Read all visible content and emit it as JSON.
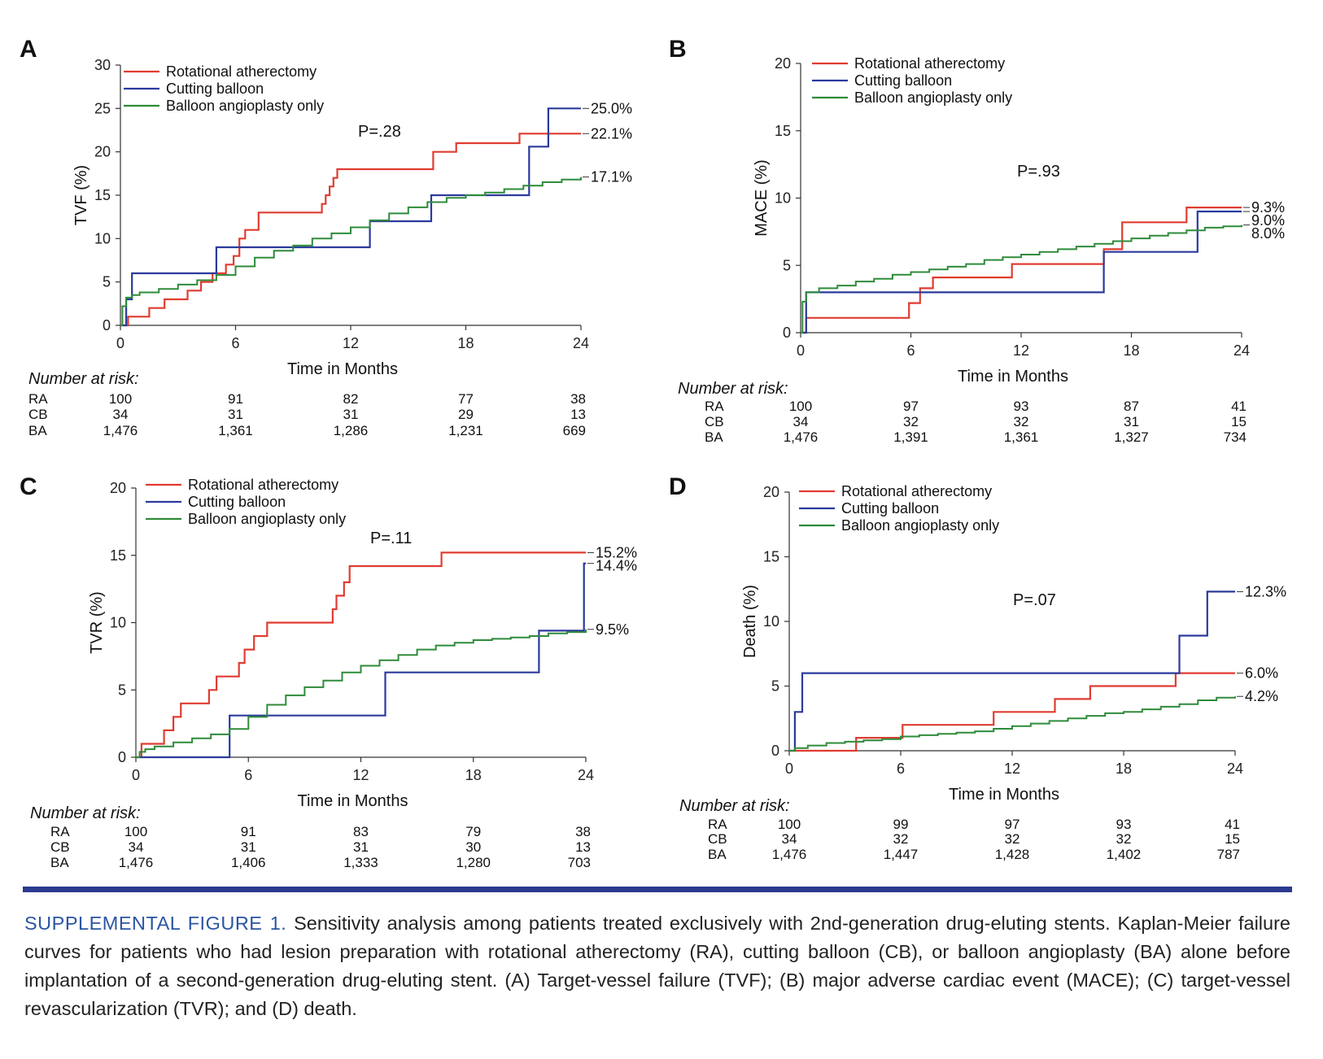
{
  "legend_labels": [
    "Rotational atherectomy",
    "Cutting balloon",
    "Balloon angioplasty only"
  ],
  "colors": {
    "RA": "#e03c31",
    "CB": "#2b3a9c",
    "BA": "#2e8b3a",
    "divider": "#2b3a8f",
    "caption_label": "#2b55a3"
  },
  "risk": {
    "title": "Number at risk:",
    "group_labels": [
      "RA",
      "CB",
      "BA"
    ]
  },
  "chart_data": [
    {
      "panel": "A",
      "type": "line",
      "title": "",
      "xlabel": "Time in Months",
      "ylabel": "TVF (%)",
      "xlim": [
        0,
        24
      ],
      "ylim": [
        0,
        30
      ],
      "xticks": [
        0,
        6,
        12,
        18,
        24
      ],
      "yticks": [
        0,
        5,
        10,
        15,
        20,
        25,
        30
      ],
      "legend": "top-left",
      "pvalue": "P=.28",
      "series": [
        {
          "name": "Rotational atherectomy",
          "key": "RA",
          "end_label": "22.1%",
          "x": [
            0,
            0.4,
            1.5,
            2.3,
            3.5,
            4.2,
            4.8,
            5.5,
            5.9,
            6.2,
            6.5,
            7.2,
            10.5,
            10.7,
            10.9,
            11.1,
            11.3,
            16.3,
            17.5,
            20.8,
            24
          ],
          "y": [
            0,
            1,
            2,
            3,
            4,
            5,
            6,
            7,
            8,
            10,
            11,
            13,
            14,
            15,
            16,
            17,
            18,
            20,
            21,
            22.1,
            22.1
          ]
        },
        {
          "name": "Cutting balloon",
          "key": "CB",
          "end_label": "25.0%",
          "x": [
            0,
            0.3,
            0.6,
            5,
            13,
            16.2,
            21.3,
            22.3,
            24
          ],
          "y": [
            0,
            3,
            6,
            9,
            12,
            15,
            20.6,
            25,
            25
          ]
        },
        {
          "name": "Balloon angioplasty only",
          "key": "BA",
          "end_label": "17.1%",
          "x": [
            0,
            0.1,
            0.3,
            0.6,
            1,
            2,
            3,
            4,
            5,
            6,
            7,
            8,
            9,
            10,
            11,
            12,
            13,
            14,
            15,
            16,
            17,
            18,
            19,
            20,
            21,
            22,
            23,
            24
          ],
          "y": [
            0,
            2.2,
            3.2,
            3.5,
            3.8,
            4.2,
            4.7,
            5.2,
            5.8,
            6.8,
            7.8,
            8.6,
            9.2,
            10,
            10.6,
            11.3,
            12.1,
            12.9,
            13.6,
            14.2,
            14.7,
            15,
            15.3,
            15.7,
            16.1,
            16.5,
            16.8,
            17.1
          ]
        }
      ],
      "risk_times": [
        0,
        6,
        12,
        18,
        24
      ],
      "risk_rows": [
        [
          "100",
          "91",
          "82",
          "77",
          "38"
        ],
        [
          "34",
          "31",
          "31",
          "29",
          "13"
        ],
        [
          "1,476",
          "1,361",
          "1,286",
          "1,231",
          "669"
        ]
      ]
    },
    {
      "panel": "B",
      "type": "line",
      "title": "",
      "xlabel": "Time in Months",
      "ylabel": "MACE (%)",
      "xlim": [
        0,
        24
      ],
      "ylim": [
        0,
        20
      ],
      "xticks": [
        0,
        6,
        12,
        18,
        24
      ],
      "yticks": [
        0,
        5,
        10,
        15,
        20
      ],
      "legend": "top-left",
      "pvalue": "P=.93",
      "series": [
        {
          "name": "Rotational atherectomy",
          "key": "RA",
          "end_label": "9.3%",
          "x": [
            0,
            0.3,
            5.9,
            6.5,
            7.2,
            11.5,
            16.5,
            17.5,
            21,
            24
          ],
          "y": [
            0,
            1.1,
            2.2,
            3.3,
            4.1,
            5.1,
            6.2,
            8.2,
            9.3,
            9.3
          ]
        },
        {
          "name": "Cutting balloon",
          "key": "CB",
          "end_label": "9.0%",
          "x": [
            0,
            0.3,
            16.5,
            21.6,
            24
          ],
          "y": [
            0,
            3.0,
            6.0,
            9.0,
            9.0
          ]
        },
        {
          "name": "Balloon angioplasty only",
          "key": "BA",
          "end_label": "8.0%",
          "x": [
            0,
            0.1,
            0.3,
            1,
            2,
            3,
            4,
            5,
            6,
            7,
            8,
            9,
            10,
            11,
            12,
            13,
            14,
            15,
            16,
            17,
            18,
            19,
            20,
            21,
            22,
            23,
            24
          ],
          "y": [
            0,
            2.3,
            3.0,
            3.3,
            3.5,
            3.8,
            4.0,
            4.3,
            4.5,
            4.7,
            4.9,
            5.1,
            5.4,
            5.6,
            5.8,
            6.0,
            6.2,
            6.4,
            6.6,
            6.8,
            7.0,
            7.2,
            7.4,
            7.6,
            7.8,
            7.9,
            8.0
          ]
        }
      ],
      "risk_times": [
        0,
        6,
        12,
        18,
        24
      ],
      "risk_rows": [
        [
          "100",
          "97",
          "93",
          "87",
          "41"
        ],
        [
          "34",
          "32",
          "32",
          "31",
          "15"
        ],
        [
          "1,476",
          "1,391",
          "1,361",
          "1,327",
          "734"
        ]
      ]
    },
    {
      "panel": "C",
      "type": "line",
      "title": "",
      "xlabel": "Time in Months",
      "ylabel": "TVR (%)",
      "xlim": [
        0,
        24
      ],
      "ylim": [
        0,
        20
      ],
      "xticks": [
        0,
        6,
        12,
        18,
        24
      ],
      "yticks": [
        0,
        5,
        10,
        15,
        20
      ],
      "legend": "top-left",
      "pvalue": "P=.11",
      "series": [
        {
          "name": "Rotational atherectomy",
          "key": "RA",
          "end_label": "15.2%",
          "x": [
            0,
            0.3,
            1.5,
            2,
            2.4,
            3.9,
            4.3,
            5.5,
            5.8,
            6.3,
            7,
            10.5,
            10.7,
            11.1,
            11.4,
            16.3,
            24
          ],
          "y": [
            0,
            1,
            2,
            3,
            4,
            5,
            6,
            7,
            8,
            9,
            10,
            11,
            12,
            13,
            14.2,
            15.2,
            15.2
          ]
        },
        {
          "name": "Cutting balloon",
          "key": "CB",
          "end_label": "14.4%",
          "x": [
            0,
            5,
            13.3,
            21.5,
            23.9,
            24
          ],
          "y": [
            0,
            3.1,
            6.3,
            9.4,
            14.4,
            14.4
          ]
        },
        {
          "name": "Balloon angioplasty only",
          "key": "BA",
          "end_label": "9.5%",
          "x": [
            0,
            0.2,
            0.5,
            1,
            2,
            3,
            4,
            5,
            6,
            7,
            8,
            9,
            10,
            11,
            12,
            13,
            14,
            15,
            16,
            17,
            18,
            19,
            20,
            21,
            22,
            23,
            24
          ],
          "y": [
            0,
            0.4,
            0.6,
            0.8,
            1.1,
            1.4,
            1.7,
            2.1,
            3.0,
            3.9,
            4.6,
            5.2,
            5.7,
            6.3,
            6.8,
            7.2,
            7.6,
            8.0,
            8.3,
            8.5,
            8.7,
            8.8,
            8.9,
            9.0,
            9.2,
            9.3,
            9.5
          ]
        }
      ],
      "risk_times": [
        0,
        6,
        12,
        18,
        24
      ],
      "risk_rows": [
        [
          "100",
          "91",
          "83",
          "79",
          "38"
        ],
        [
          "34",
          "31",
          "31",
          "30",
          "13"
        ],
        [
          "1,476",
          "1,406",
          "1,333",
          "1,280",
          "703"
        ]
      ]
    },
    {
      "panel": "D",
      "type": "line",
      "title": "",
      "xlabel": "Time in Months",
      "ylabel": "Death (%)",
      "xlim": [
        0,
        24
      ],
      "ylim": [
        0,
        20
      ],
      "xticks": [
        0,
        6,
        12,
        18,
        24
      ],
      "yticks": [
        0,
        5,
        10,
        15,
        20
      ],
      "legend": "top-left",
      "pvalue": "P=.07",
      "series": [
        {
          "name": "Rotational atherectomy",
          "key": "RA",
          "end_label": "6.0%",
          "x": [
            0,
            3.6,
            6.1,
            11,
            14.3,
            16.2,
            20.8,
            24
          ],
          "y": [
            0,
            1.0,
            2.0,
            3.0,
            4.0,
            5.0,
            6.0,
            6.0
          ]
        },
        {
          "name": "Cutting balloon",
          "key": "CB",
          "end_label": "12.3%",
          "x": [
            0,
            0.3,
            0.7,
            21,
            22.5,
            24
          ],
          "y": [
            0,
            3.0,
            6.0,
            8.9,
            12.3,
            12.3
          ]
        },
        {
          "name": "Balloon angioplasty only",
          "key": "BA",
          "end_label": "4.2%",
          "x": [
            0,
            0.3,
            1,
            2,
            3,
            4,
            5,
            6,
            7,
            8,
            9,
            10,
            11,
            12,
            13,
            14,
            15,
            16,
            17,
            18,
            19,
            20,
            21,
            22,
            23,
            24
          ],
          "y": [
            0,
            0.2,
            0.4,
            0.6,
            0.7,
            0.8,
            0.9,
            1.1,
            1.2,
            1.3,
            1.4,
            1.5,
            1.7,
            1.9,
            2.1,
            2.3,
            2.5,
            2.7,
            2.9,
            3.0,
            3.2,
            3.4,
            3.6,
            3.9,
            4.1,
            4.2
          ]
        }
      ],
      "risk_times": [
        0,
        6,
        12,
        18,
        24
      ],
      "risk_rows": [
        [
          "100",
          "99",
          "97",
          "93",
          "41"
        ],
        [
          "34",
          "32",
          "32",
          "32",
          "15"
        ],
        [
          "1,476",
          "1,447",
          "1,428",
          "1,402",
          "787"
        ]
      ]
    }
  ],
  "caption": {
    "label": "SUPPLEMENTAL FIGURE 1.",
    "text": " Sensitivity analysis among patients treated exclusively with 2nd-generation drug-eluting stents. Kaplan-Meier failure curves for patients who had lesion preparation with rotational atherectomy (RA), cutting balloon (CB), or balloon angioplasty (BA) alone before implantation of a second-generation drug-eluting stent. (A) Target-vessel failure (TVF); (B) major adverse cardiac event (MACE); (C) target-vessel revascularization (TVR); and (D) death."
  }
}
